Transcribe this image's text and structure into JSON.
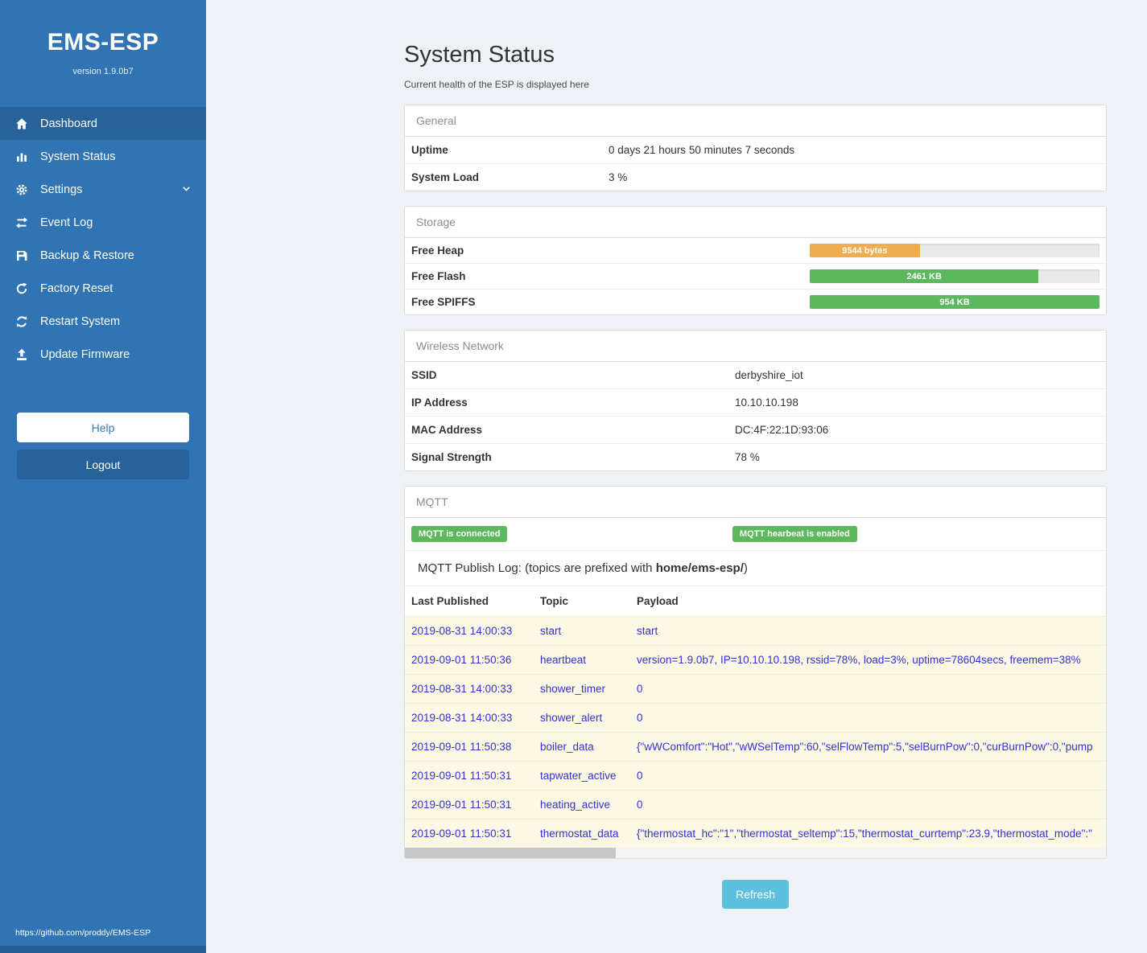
{
  "sidebar": {
    "title": "EMS-ESP",
    "version": "version 1.9.0b7",
    "items": [
      {
        "label": "Dashboard",
        "icon": "home-icon",
        "active": true
      },
      {
        "label": "System Status",
        "icon": "chart-icon"
      },
      {
        "label": "Settings",
        "icon": "gear-icon",
        "chevron": true
      },
      {
        "label": "Event Log",
        "icon": "exchange-icon"
      },
      {
        "label": "Backup & Restore",
        "icon": "save-icon"
      },
      {
        "label": "Factory Reset",
        "icon": "reset-icon"
      },
      {
        "label": "Restart System",
        "icon": "restart-icon"
      },
      {
        "label": "Update Firmware",
        "icon": "upload-icon"
      }
    ],
    "help_label": "Help",
    "logout_label": "Logout",
    "footer_link": "https://github.com/proddy/EMS-ESP"
  },
  "header": {
    "title": "System Status",
    "subtitle": "Current health of the ESP is displayed here"
  },
  "general": {
    "heading": "General",
    "rows": [
      {
        "label": "Uptime",
        "value": "0 days 21 hours 50 minutes 7 seconds"
      },
      {
        "label": "System Load",
        "value": "3 %"
      }
    ]
  },
  "storage": {
    "heading": "Storage",
    "rows": [
      {
        "label": "Free Heap",
        "bar_label": "9544 bytes",
        "percent": 38,
        "color": "#f0ad4e"
      },
      {
        "label": "Free Flash",
        "bar_label": "2461 KB",
        "percent": 79,
        "color": "#5cb85c"
      },
      {
        "label": "Free SPIFFS",
        "bar_label": "954 KB",
        "percent": 100,
        "color": "#5cb85c"
      }
    ]
  },
  "wireless": {
    "heading": "Wireless Network",
    "rows": [
      {
        "label": "SSID",
        "value": "derbyshire_iot"
      },
      {
        "label": "IP Address",
        "value": "10.10.10.198"
      },
      {
        "label": "MAC Address",
        "value": "DC:4F:22:1D:93:06"
      },
      {
        "label": "Signal Strength",
        "value": "78 %"
      }
    ]
  },
  "mqtt": {
    "heading": "MQTT",
    "badges": [
      "MQTT is connected",
      "MQTT hearbeat is enabled"
    ],
    "publish_log_prefix": "MQTT Publish Log: (topics are prefixed with ",
    "publish_log_bold": "home/ems-esp/",
    "publish_log_suffix": ")",
    "table": {
      "headers": [
        "Last Published",
        "Topic",
        "Payload"
      ],
      "rows": [
        [
          "2019-08-31 14:00:33",
          "start",
          "start"
        ],
        [
          "2019-09-01 11:50:36",
          "heartbeat",
          "version=1.9.0b7, IP=10.10.10.198, rssid=78%, load=3%, uptime=78604secs, freemem=38%"
        ],
        [
          "2019-08-31 14:00:33",
          "shower_timer",
          "0"
        ],
        [
          "2019-08-31 14:00:33",
          "shower_alert",
          "0"
        ],
        [
          "2019-09-01 11:50:38",
          "boiler_data",
          "{\"wWComfort\":\"Hot\",\"wWSelTemp\":60,\"selFlowTemp\":5,\"selBurnPow\":0,\"curBurnPow\":0,\"pump"
        ],
        [
          "2019-09-01 11:50:31",
          "tapwater_active",
          "0"
        ],
        [
          "2019-09-01 11:50:31",
          "heating_active",
          "0"
        ],
        [
          "2019-09-01 11:50:31",
          "thermostat_data",
          "{\"thermostat_hc\":\"1\",\"thermostat_seltemp\":15,\"thermostat_currtemp\":23.9,\"thermostat_mode\":\""
        ]
      ]
    }
  },
  "refresh_label": "Refresh",
  "colors": {
    "sidebar_blue": "#3174b3",
    "active_blue": "#28629b",
    "badge_green": "#5cb85c",
    "heap_orange": "#f0ad4e",
    "bar_green": "#5cb85c",
    "refresh_blue": "#5bc0de",
    "log_text_blue": "#3333cc",
    "log_row_yellow": "#fcf8e3"
  }
}
